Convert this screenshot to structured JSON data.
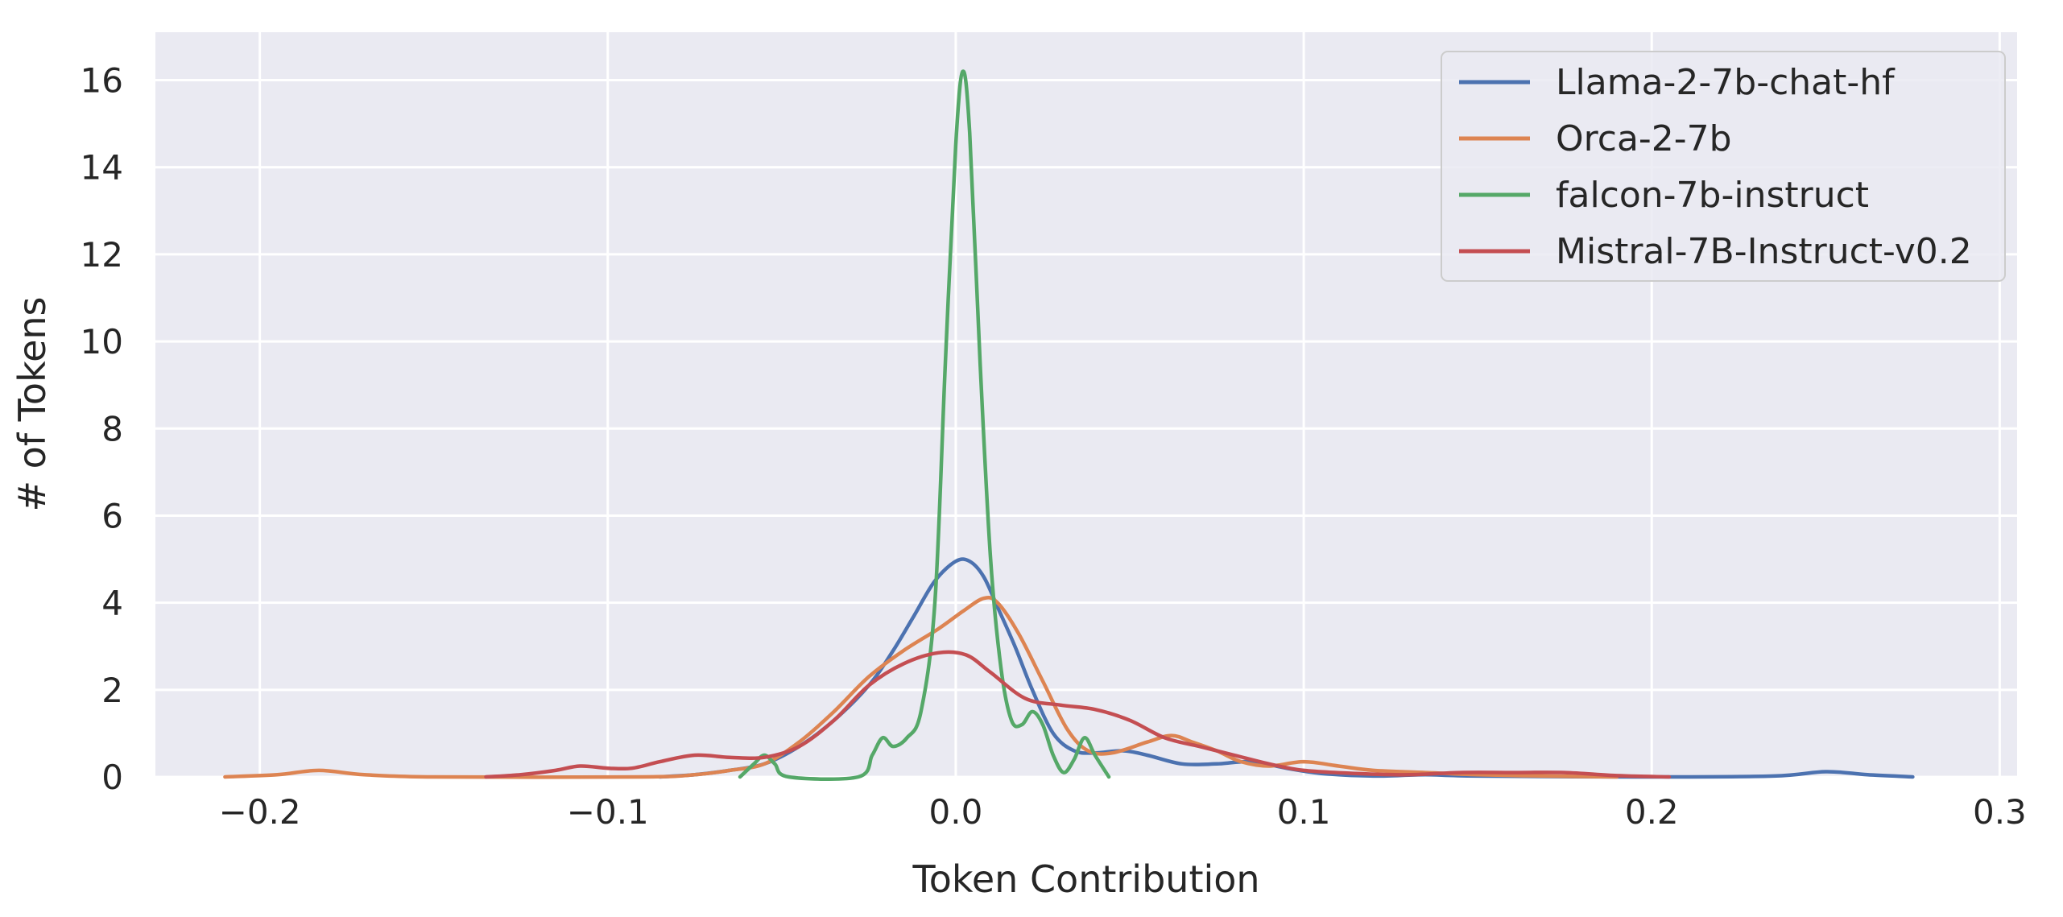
{
  "chart_data": {
    "type": "line",
    "title": "",
    "xlabel": "Token Contribution",
    "ylabel": "# of Tokens",
    "xlim": [
      -0.23,
      0.305
    ],
    "ylim": [
      0,
      17.1
    ],
    "xticks": [
      -0.2,
      -0.1,
      0.0,
      0.1,
      0.2,
      0.3
    ],
    "xtick_labels": [
      "−0.2",
      "−0.1",
      "0.0",
      "0.1",
      "0.2",
      "0.3"
    ],
    "yticks": [
      0,
      2,
      4,
      6,
      8,
      10,
      12,
      14,
      16
    ],
    "ytick_labels": [
      "0",
      "2",
      "4",
      "6",
      "8",
      "10",
      "12",
      "14",
      "16"
    ],
    "grid": true,
    "background": "#eaeaf2",
    "legend_position": "top-right",
    "series": [
      {
        "name": "Llama-2-7b-chat-hf",
        "color": "#4c72b0",
        "points": [
          [
            -0.085,
            0
          ],
          [
            -0.075,
            0.05
          ],
          [
            -0.065,
            0.15
          ],
          [
            -0.055,
            0.3
          ],
          [
            -0.045,
            0.7
          ],
          [
            -0.035,
            1.3
          ],
          [
            -0.025,
            2.1
          ],
          [
            -0.018,
            2.9
          ],
          [
            -0.012,
            3.7
          ],
          [
            -0.006,
            4.5
          ],
          [
            0.0,
            4.95
          ],
          [
            0.004,
            4.95
          ],
          [
            0.008,
            4.6
          ],
          [
            0.012,
            3.9
          ],
          [
            0.017,
            3.0
          ],
          [
            0.022,
            2.0
          ],
          [
            0.028,
            1.0
          ],
          [
            0.034,
            0.6
          ],
          [
            0.04,
            0.55
          ],
          [
            0.048,
            0.6
          ],
          [
            0.055,
            0.5
          ],
          [
            0.065,
            0.3
          ],
          [
            0.075,
            0.3
          ],
          [
            0.085,
            0.35
          ],
          [
            0.095,
            0.2
          ],
          [
            0.105,
            0.08
          ],
          [
            0.12,
            0.02
          ],
          [
            0.135,
            0.05
          ],
          [
            0.15,
            0.02
          ],
          [
            0.2,
            0
          ],
          [
            0.235,
            0.02
          ],
          [
            0.25,
            0.12
          ],
          [
            0.262,
            0.05
          ],
          [
            0.275,
            0
          ]
        ]
      },
      {
        "name": "Orca-2-7b",
        "color": "#dd8452",
        "points": [
          [
            -0.21,
            0
          ],
          [
            -0.195,
            0.05
          ],
          [
            -0.183,
            0.15
          ],
          [
            -0.17,
            0.05
          ],
          [
            -0.15,
            0
          ],
          [
            -0.09,
            0
          ],
          [
            -0.075,
            0.05
          ],
          [
            -0.065,
            0.15
          ],
          [
            -0.055,
            0.3
          ],
          [
            -0.045,
            0.8
          ],
          [
            -0.035,
            1.5
          ],
          [
            -0.025,
            2.3
          ],
          [
            -0.015,
            2.9
          ],
          [
            -0.005,
            3.4
          ],
          [
            0.002,
            3.8
          ],
          [
            0.008,
            4.1
          ],
          [
            0.012,
            4.0
          ],
          [
            0.018,
            3.3
          ],
          [
            0.025,
            2.2
          ],
          [
            0.032,
            1.1
          ],
          [
            0.038,
            0.6
          ],
          [
            0.045,
            0.55
          ],
          [
            0.055,
            0.8
          ],
          [
            0.062,
            0.95
          ],
          [
            0.068,
            0.8
          ],
          [
            0.075,
            0.6
          ],
          [
            0.082,
            0.35
          ],
          [
            0.09,
            0.25
          ],
          [
            0.1,
            0.35
          ],
          [
            0.11,
            0.25
          ],
          [
            0.12,
            0.15
          ],
          [
            0.135,
            0.1
          ],
          [
            0.15,
            0.05
          ],
          [
            0.17,
            0.02
          ],
          [
            0.19,
            0
          ]
        ]
      },
      {
        "name": "falcon-7b-instruct",
        "color": "#55a868",
        "points": [
          [
            -0.062,
            0
          ],
          [
            -0.058,
            0.3
          ],
          [
            -0.055,
            0.5
          ],
          [
            -0.052,
            0.3
          ],
          [
            -0.048,
            0
          ],
          [
            -0.028,
            0
          ],
          [
            -0.024,
            0.5
          ],
          [
            -0.021,
            0.9
          ],
          [
            -0.018,
            0.7
          ],
          [
            -0.014,
            0.9
          ],
          [
            -0.01,
            1.5
          ],
          [
            -0.006,
            4.0
          ],
          [
            -0.003,
            9.5
          ],
          [
            0.0,
            14.5
          ],
          [
            0.002,
            16.2
          ],
          [
            0.004,
            14.8
          ],
          [
            0.007,
            9.5
          ],
          [
            0.01,
            5.0
          ],
          [
            0.013,
            2.5
          ],
          [
            0.016,
            1.3
          ],
          [
            0.019,
            1.2
          ],
          [
            0.022,
            1.5
          ],
          [
            0.025,
            1.2
          ],
          [
            0.028,
            0.5
          ],
          [
            0.031,
            0.1
          ],
          [
            0.034,
            0.4
          ],
          [
            0.037,
            0.9
          ],
          [
            0.04,
            0.5
          ],
          [
            0.044,
            0
          ]
        ]
      },
      {
        "name": "Mistral-7B-Instruct-v0.2",
        "color": "#c44e52",
        "points": [
          [
            -0.135,
            0
          ],
          [
            -0.125,
            0.05
          ],
          [
            -0.115,
            0.15
          ],
          [
            -0.108,
            0.25
          ],
          [
            -0.1,
            0.2
          ],
          [
            -0.093,
            0.2
          ],
          [
            -0.085,
            0.35
          ],
          [
            -0.075,
            0.5
          ],
          [
            -0.065,
            0.45
          ],
          [
            -0.055,
            0.45
          ],
          [
            -0.045,
            0.7
          ],
          [
            -0.035,
            1.3
          ],
          [
            -0.025,
            2.1
          ],
          [
            -0.015,
            2.6
          ],
          [
            -0.005,
            2.85
          ],
          [
            0.003,
            2.8
          ],
          [
            0.01,
            2.4
          ],
          [
            0.02,
            1.8
          ],
          [
            0.03,
            1.65
          ],
          [
            0.04,
            1.55
          ],
          [
            0.05,
            1.3
          ],
          [
            0.06,
            0.9
          ],
          [
            0.07,
            0.7
          ],
          [
            0.08,
            0.5
          ],
          [
            0.09,
            0.3
          ],
          [
            0.1,
            0.15
          ],
          [
            0.115,
            0.08
          ],
          [
            0.13,
            0.05
          ],
          [
            0.145,
            0.1
          ],
          [
            0.16,
            0.1
          ],
          [
            0.175,
            0.1
          ],
          [
            0.19,
            0.03
          ],
          [
            0.205,
            0
          ]
        ]
      }
    ]
  }
}
